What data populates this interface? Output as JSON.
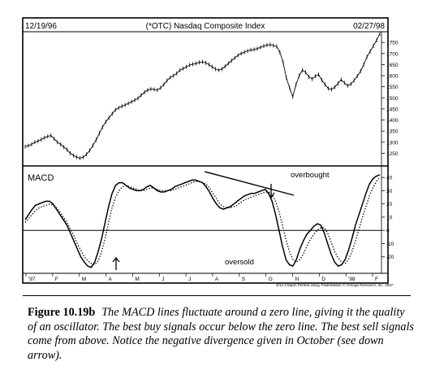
{
  "chart_data": [
    {
      "type": "line",
      "title": "(*OTC) Nasdaq Composite Index",
      "start_date": "12/19/96",
      "end_date": "02/27/98",
      "y_ticks": [
        1250,
        1300,
        1350,
        1400,
        1450,
        1500,
        1550,
        1600,
        1650,
        1700,
        1750
      ],
      "y_tick_labels": [
        "1250",
        "1300",
        "1350",
        "1400",
        "1450",
        "1500",
        "1550",
        "1600",
        "1650",
        "1700",
        "1750"
      ],
      "ylim": [
        1200,
        1780
      ],
      "series": [
        {
          "values": [
            1280,
            1284,
            1290,
            1300,
            1305,
            1312,
            1320,
            1326,
            1330,
            1315,
            1300,
            1290,
            1278,
            1266,
            1250,
            1240,
            1232,
            1228,
            1232,
            1245,
            1262,
            1285,
            1310,
            1340,
            1368,
            1392,
            1410,
            1428,
            1446,
            1455,
            1462,
            1468,
            1475,
            1482,
            1490,
            1498,
            1512,
            1525,
            1535,
            1540,
            1538,
            1535,
            1545,
            1560,
            1578,
            1592,
            1600,
            1610,
            1625,
            1632,
            1640,
            1648,
            1652,
            1655,
            1660,
            1662,
            1658,
            1650,
            1640,
            1630,
            1625,
            1630,
            1642,
            1655,
            1668,
            1680,
            1692,
            1700,
            1706,
            1712,
            1716,
            1718,
            1722,
            1728,
            1734,
            1738,
            1740,
            1736,
            1732,
            1705,
            1660,
            1590,
            1545,
            1505,
            1560,
            1600,
            1625,
            1615,
            1595,
            1585,
            1598,
            1605,
            1580,
            1560,
            1542,
            1538,
            1548,
            1565,
            1582,
            1568,
            1555,
            1562,
            1578,
            1598,
            1620,
            1650,
            1685,
            1710,
            1735,
            1760,
            1790
          ]
        }
      ]
    },
    {
      "type": "line",
      "title": "MACD",
      "y_ticks": [
        -20,
        -10,
        0,
        10,
        20,
        30,
        40
      ],
      "y_tick_labels": [
        "-20",
        "-10",
        "0",
        "10",
        "20",
        "30",
        "40"
      ],
      "ylim": [
        -30,
        45
      ],
      "x_month_labels": [
        "'97",
        "F",
        "M",
        "A",
        "M",
        "J",
        "J",
        "A",
        "S",
        "O",
        "N",
        "D",
        "'98",
        "F"
      ],
      "annotations": [
        "overbought",
        "oversold"
      ],
      "footer_note": "3/13  2:56pm Printed using TradeStation © Omega Research, Inc. 1997",
      "series": [
        {
          "name": "MACD",
          "style": "solid",
          "values": [
            8,
            12,
            16,
            19,
            20,
            21,
            22,
            22,
            20,
            16,
            12,
            8,
            4,
            -2,
            -8,
            -14,
            -20,
            -24,
            -27,
            -28,
            -24,
            -16,
            -6,
            6,
            18,
            28,
            34,
            36,
            36,
            34,
            32,
            31,
            30,
            30,
            31,
            33,
            34,
            32,
            30,
            29,
            29,
            30,
            31,
            33,
            34,
            35,
            36,
            37,
            38,
            38,
            37,
            36,
            33,
            29,
            24,
            20,
            17,
            16,
            17,
            18,
            20,
            22,
            24,
            26,
            27,
            28,
            28,
            29,
            30,
            31,
            28,
            22,
            12,
            0,
            -12,
            -22,
            -26,
            -27,
            -22,
            -14,
            -8,
            -3,
            0,
            3,
            5,
            4,
            -2,
            -10,
            -18,
            -24,
            -27,
            -26,
            -22,
            -15,
            -6,
            4,
            12,
            20,
            28,
            35,
            39,
            41,
            42
          ]
        },
        {
          "name": "Signal",
          "style": "dotted",
          "values": [
            6,
            9,
            12,
            15,
            17,
            18,
            19,
            20,
            19,
            17,
            14,
            10,
            6,
            1,
            -4,
            -10,
            -15,
            -20,
            -23,
            -25,
            -26,
            -23,
            -16,
            -6,
            6,
            17,
            25,
            30,
            33,
            34,
            33,
            32,
            31,
            30,
            30,
            31,
            32,
            32,
            31,
            30,
            30,
            30,
            30,
            31,
            32,
            33,
            34,
            35,
            36,
            37,
            37,
            36,
            35,
            32,
            28,
            24,
            20,
            18,
            17,
            17,
            18,
            19,
            21,
            23,
            24,
            25,
            26,
            27,
            28,
            29,
            29,
            27,
            22,
            14,
            4,
            -7,
            -16,
            -22,
            -24,
            -22,
            -18,
            -12,
            -7,
            -3,
            0,
            2,
            2,
            -2,
            -9,
            -16,
            -21,
            -24,
            -25,
            -22,
            -16,
            -8,
            1,
            10,
            18,
            26,
            32,
            37,
            40
          ]
        }
      ]
    }
  ],
  "caption": {
    "label": "Figure 10.19b",
    "text": "The MACD lines fluctuate around a zero line, giving it the quality of an oscillator. The best buy signals occur below the zero line. The best sell signals come from above. Notice the negative divergence given in October (see down arrow)."
  }
}
